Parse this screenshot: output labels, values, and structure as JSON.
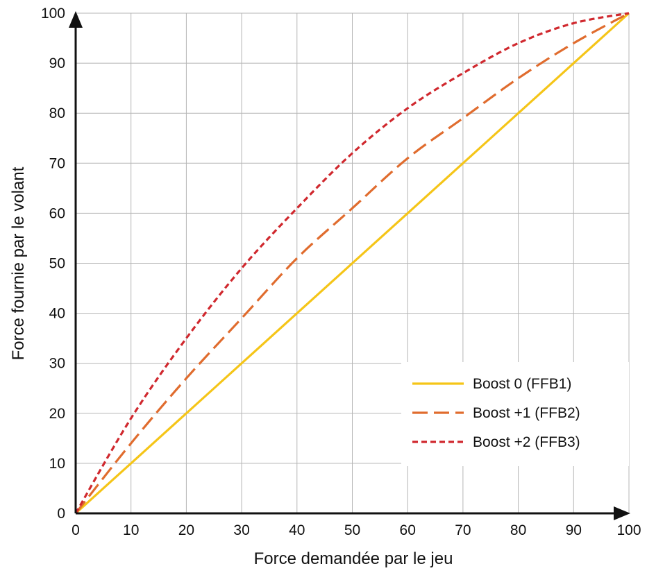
{
  "chart_data": {
    "type": "line",
    "title": "",
    "xlabel": "Force demandée par le jeu",
    "ylabel": "Force fournie par le volant",
    "xlim": [
      0,
      100
    ],
    "ylim": [
      0,
      100
    ],
    "x_ticks": [
      0,
      10,
      20,
      30,
      40,
      50,
      60,
      70,
      80,
      90,
      100
    ],
    "y_ticks": [
      0,
      10,
      20,
      30,
      40,
      50,
      60,
      70,
      80,
      90,
      100
    ],
    "grid": true,
    "legend_position": "bottom-right",
    "x": [
      0,
      10,
      20,
      30,
      40,
      50,
      60,
      70,
      80,
      90,
      100
    ],
    "series": [
      {
        "name": "Boost 0 (FFB1)",
        "color": "#f5c518",
        "line_style": "solid",
        "values": [
          0,
          10,
          20,
          30,
          40,
          50,
          60,
          70,
          80,
          90,
          100
        ]
      },
      {
        "name": "Boost +1 (FFB2)",
        "color": "#e06c2e",
        "line_style": "dashed",
        "values": [
          0,
          14,
          27,
          39,
          51,
          61,
          71,
          79,
          87,
          94,
          100
        ]
      },
      {
        "name": "Boost +2 (FFB3)",
        "color": "#d0282e",
        "line_style": "dotted",
        "values": [
          0,
          19,
          35,
          49,
          61,
          72,
          81,
          88,
          94,
          98,
          100
        ]
      }
    ]
  }
}
